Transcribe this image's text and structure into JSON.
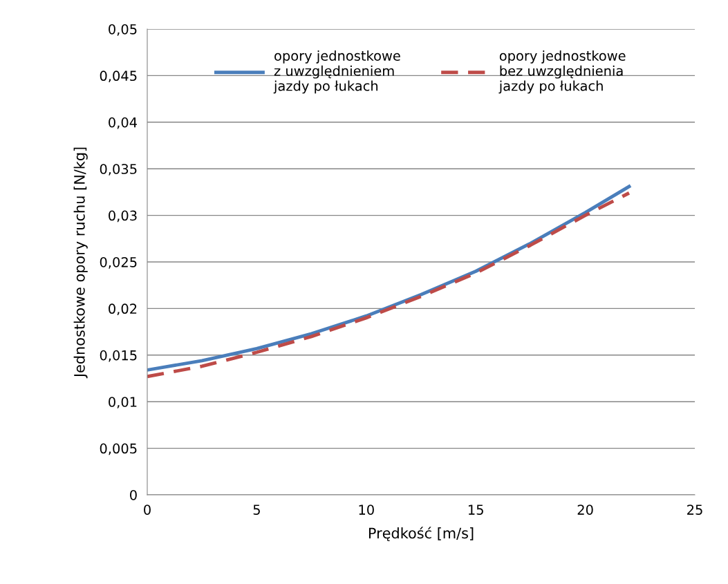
{
  "chart_data": {
    "type": "line",
    "xlabel": "Prędkość [m/s]",
    "ylabel": "Jednostkowe opory ruchu [N/kg]",
    "x": [
      0,
      2.5,
      5,
      7.5,
      10,
      12.5,
      15,
      17.5,
      20,
      22
    ],
    "series": [
      {
        "name": "opory jednostkowe\nz uwzględnieniem\njazdy po łukach",
        "color": "#4a7ebb",
        "line_style": "solid",
        "values": [
          0.0134,
          0.0144,
          0.0157,
          0.0173,
          0.0192,
          0.0215,
          0.024,
          0.027,
          0.0303,
          0.0331
        ]
      },
      {
        "name": "opory jednostkowe\nbez uwzględnienia\njazdy po łukach",
        "color": "#be4b48",
        "line_style": "dashed",
        "values": [
          0.0127,
          0.0138,
          0.0153,
          0.017,
          0.019,
          0.0213,
          0.0238,
          0.0268,
          0.03,
          0.0324
        ]
      }
    ],
    "xlim": [
      0,
      25
    ],
    "xticks": [
      0,
      5,
      10,
      15,
      20,
      25
    ],
    "ylim": [
      0,
      0.05
    ],
    "yticks": [
      0,
      {
        "value": 0.005,
        "label": "0,005"
      },
      {
        "value": 0.01,
        "label": "0,01"
      },
      {
        "value": 0.015,
        "label": "0,015"
      },
      {
        "value": 0.02,
        "label": "0,02"
      },
      {
        "value": 0.025,
        "label": "0,025"
      },
      {
        "value": 0.03,
        "label": "0,03"
      },
      {
        "value": 0.035,
        "label": "0,035"
      },
      {
        "value": 0.04,
        "label": "0,04"
      },
      {
        "value": 0.045,
        "label": "0,045"
      },
      {
        "value": 0.05,
        "label": "0,05"
      }
    ],
    "grid": "y",
    "legend": "top",
    "marker": "none"
  }
}
